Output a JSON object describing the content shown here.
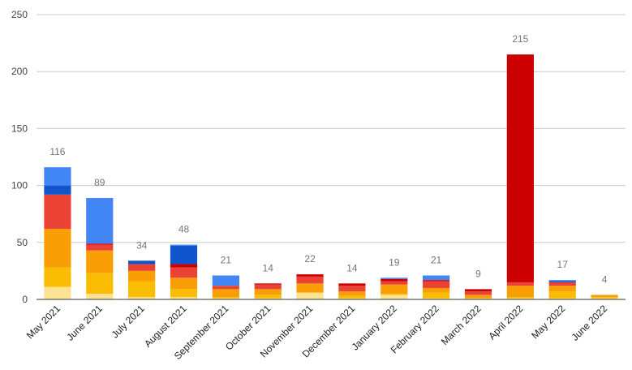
{
  "chart_data": {
    "type": "bar",
    "stacked": true,
    "title": "",
    "xlabel": "",
    "ylabel": "",
    "ylim": [
      0,
      250
    ],
    "yticks": [
      0,
      50,
      100,
      150,
      200,
      250
    ],
    "grid": true,
    "legend": "none",
    "categories": [
      "May 2021",
      "June 2021",
      "July 2021",
      "August 2021",
      "September 2021",
      "October 2021",
      "November 2021",
      "December 2021",
      "January 2022",
      "February 2022",
      "March 2022",
      "April 2022",
      "May 2022",
      "June 2022"
    ],
    "totals": [
      116,
      89,
      34,
      48,
      21,
      14,
      22,
      14,
      19,
      21,
      9,
      215,
      17,
      4
    ],
    "series": [
      {
        "color": "#fde293",
        "values": [
          11,
          5,
          2,
          2,
          1,
          1,
          6,
          1,
          4,
          1,
          1,
          1,
          1,
          1
        ]
      },
      {
        "color": "#fbbc04",
        "values": [
          17,
          18,
          14,
          7,
          1,
          3,
          0,
          2,
          1,
          5,
          0,
          1,
          6,
          1
        ]
      },
      {
        "color": "#fa9e05",
        "values": [
          34,
          20,
          9,
          10,
          7,
          5,
          8,
          4,
          8,
          4,
          3,
          10,
          5,
          2
        ]
      },
      {
        "color": "#ea4335",
        "values": [
          30,
          5,
          6,
          9,
          3,
          4,
          6,
          5,
          3,
          6,
          3,
          3,
          3,
          0
        ]
      },
      {
        "color": "#cc0000",
        "values": [
          0,
          1,
          0,
          3,
          0,
          1,
          2,
          2,
          2,
          1,
          2,
          200,
          0,
          0
        ]
      },
      {
        "color": "#1155cc",
        "values": [
          8,
          0,
          3,
          16,
          0,
          0,
          0,
          0,
          0,
          0,
          0,
          0,
          1,
          0
        ]
      },
      {
        "color": "#4285f4",
        "values": [
          16,
          40,
          0,
          1,
          9,
          0,
          0,
          0,
          1,
          4,
          0,
          0,
          1,
          0
        ]
      }
    ]
  }
}
